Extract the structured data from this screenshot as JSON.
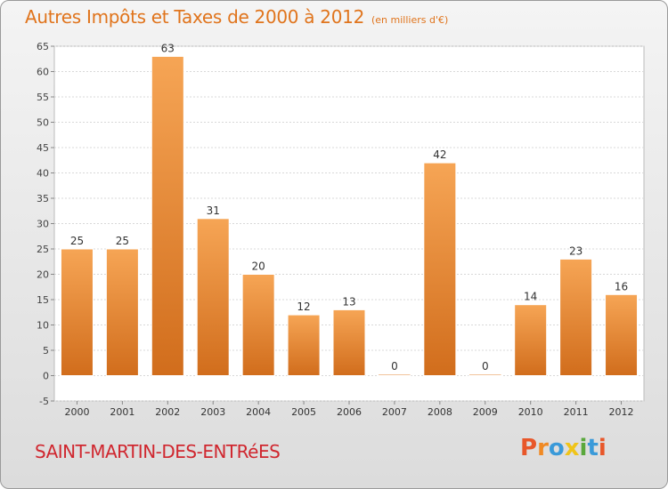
{
  "header": {
    "title": "Autres Impôts et Taxes de 2000 à 2012",
    "unit": "(en milliers d'€)"
  },
  "footer": {
    "commune": "SAINT-MARTIN-DES-ENTRéES",
    "logo_text": "Proxiti"
  },
  "colors": {
    "bar_top": "#f6a555",
    "bar_bottom": "#d16d1c",
    "title": "#e0741c",
    "commune": "#d0272f",
    "logo": [
      "#e8572a",
      "#f08a24",
      "#3a9ad9",
      "#f0c419",
      "#5aa83c",
      "#3a9ad9",
      "#e8572a"
    ]
  },
  "chart_data": {
    "type": "bar",
    "categories": [
      "2000",
      "2001",
      "2002",
      "2003",
      "2004",
      "2005",
      "2006",
      "2007",
      "2008",
      "2009",
      "2010",
      "2011",
      "2012"
    ],
    "values": [
      25,
      25,
      63,
      31,
      20,
      12,
      13,
      0,
      42,
      0,
      14,
      23,
      16
    ],
    "data_labels": [
      "25",
      "25",
      "63",
      "31",
      "20",
      "12",
      "13",
      "0",
      "42",
      "0",
      "14",
      "23",
      "16"
    ],
    "ylim": [
      -5,
      65
    ],
    "yticks": [
      -5,
      0,
      5,
      10,
      15,
      20,
      25,
      30,
      35,
      40,
      45,
      50,
      55,
      60,
      65
    ],
    "grid": true,
    "legend": "none"
  }
}
